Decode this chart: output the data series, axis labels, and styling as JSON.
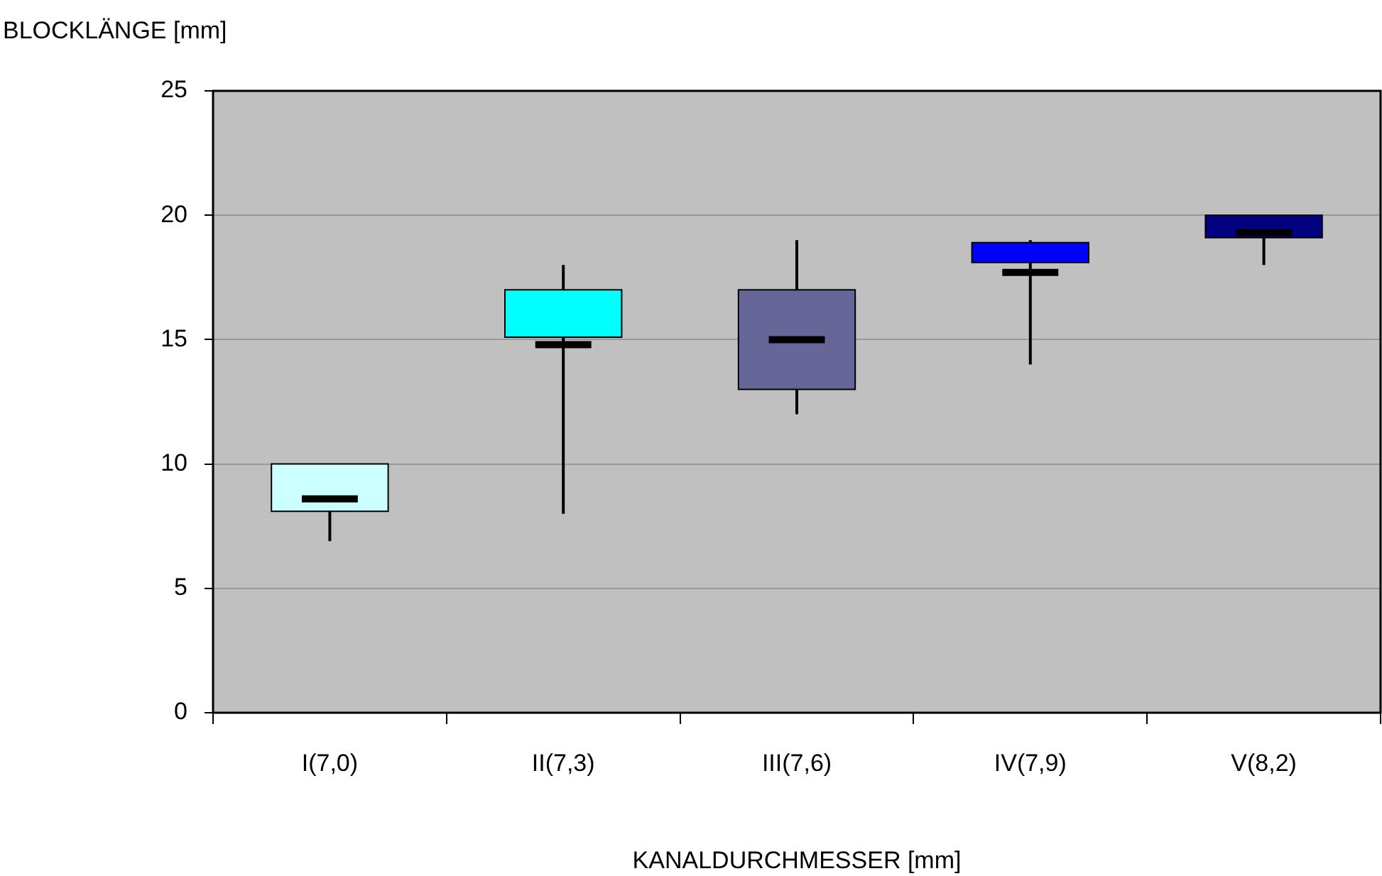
{
  "chart_data": {
    "type": "box",
    "xlabel": "KANALDURCHMESSER [mm]",
    "ylabel": "BLOCKLÄNGE [mm]",
    "categories": [
      "I(7,0)",
      "II(7,3)",
      "III(7,6)",
      "IV(7,9)",
      "V(8,2)"
    ],
    "colors": [
      "#ccffff",
      "#00ffff",
      "#666699",
      "#0000ff",
      "#000080"
    ],
    "boxes": [
      {
        "low": 6.9,
        "q1": 8.1,
        "median": 8.6,
        "q3": 10,
        "high": 10
      },
      {
        "low": 8,
        "q1": 15.1,
        "median": 14.8,
        "q3": 17,
        "high": 18
      },
      {
        "low": 12,
        "q1": 13,
        "median": 15,
        "q3": 17,
        "high": 19
      },
      {
        "low": 14,
        "q1": 18.1,
        "median": 17.7,
        "q3": 18.9,
        "high": 19
      },
      {
        "low": 18,
        "q1": 19.1,
        "median": 19.3,
        "q3": 20,
        "high": 20
      }
    ],
    "ylim": [
      0,
      25
    ],
    "yticks": [
      0,
      5,
      10,
      15,
      20,
      25
    ],
    "grid": "y",
    "legend": false
  }
}
